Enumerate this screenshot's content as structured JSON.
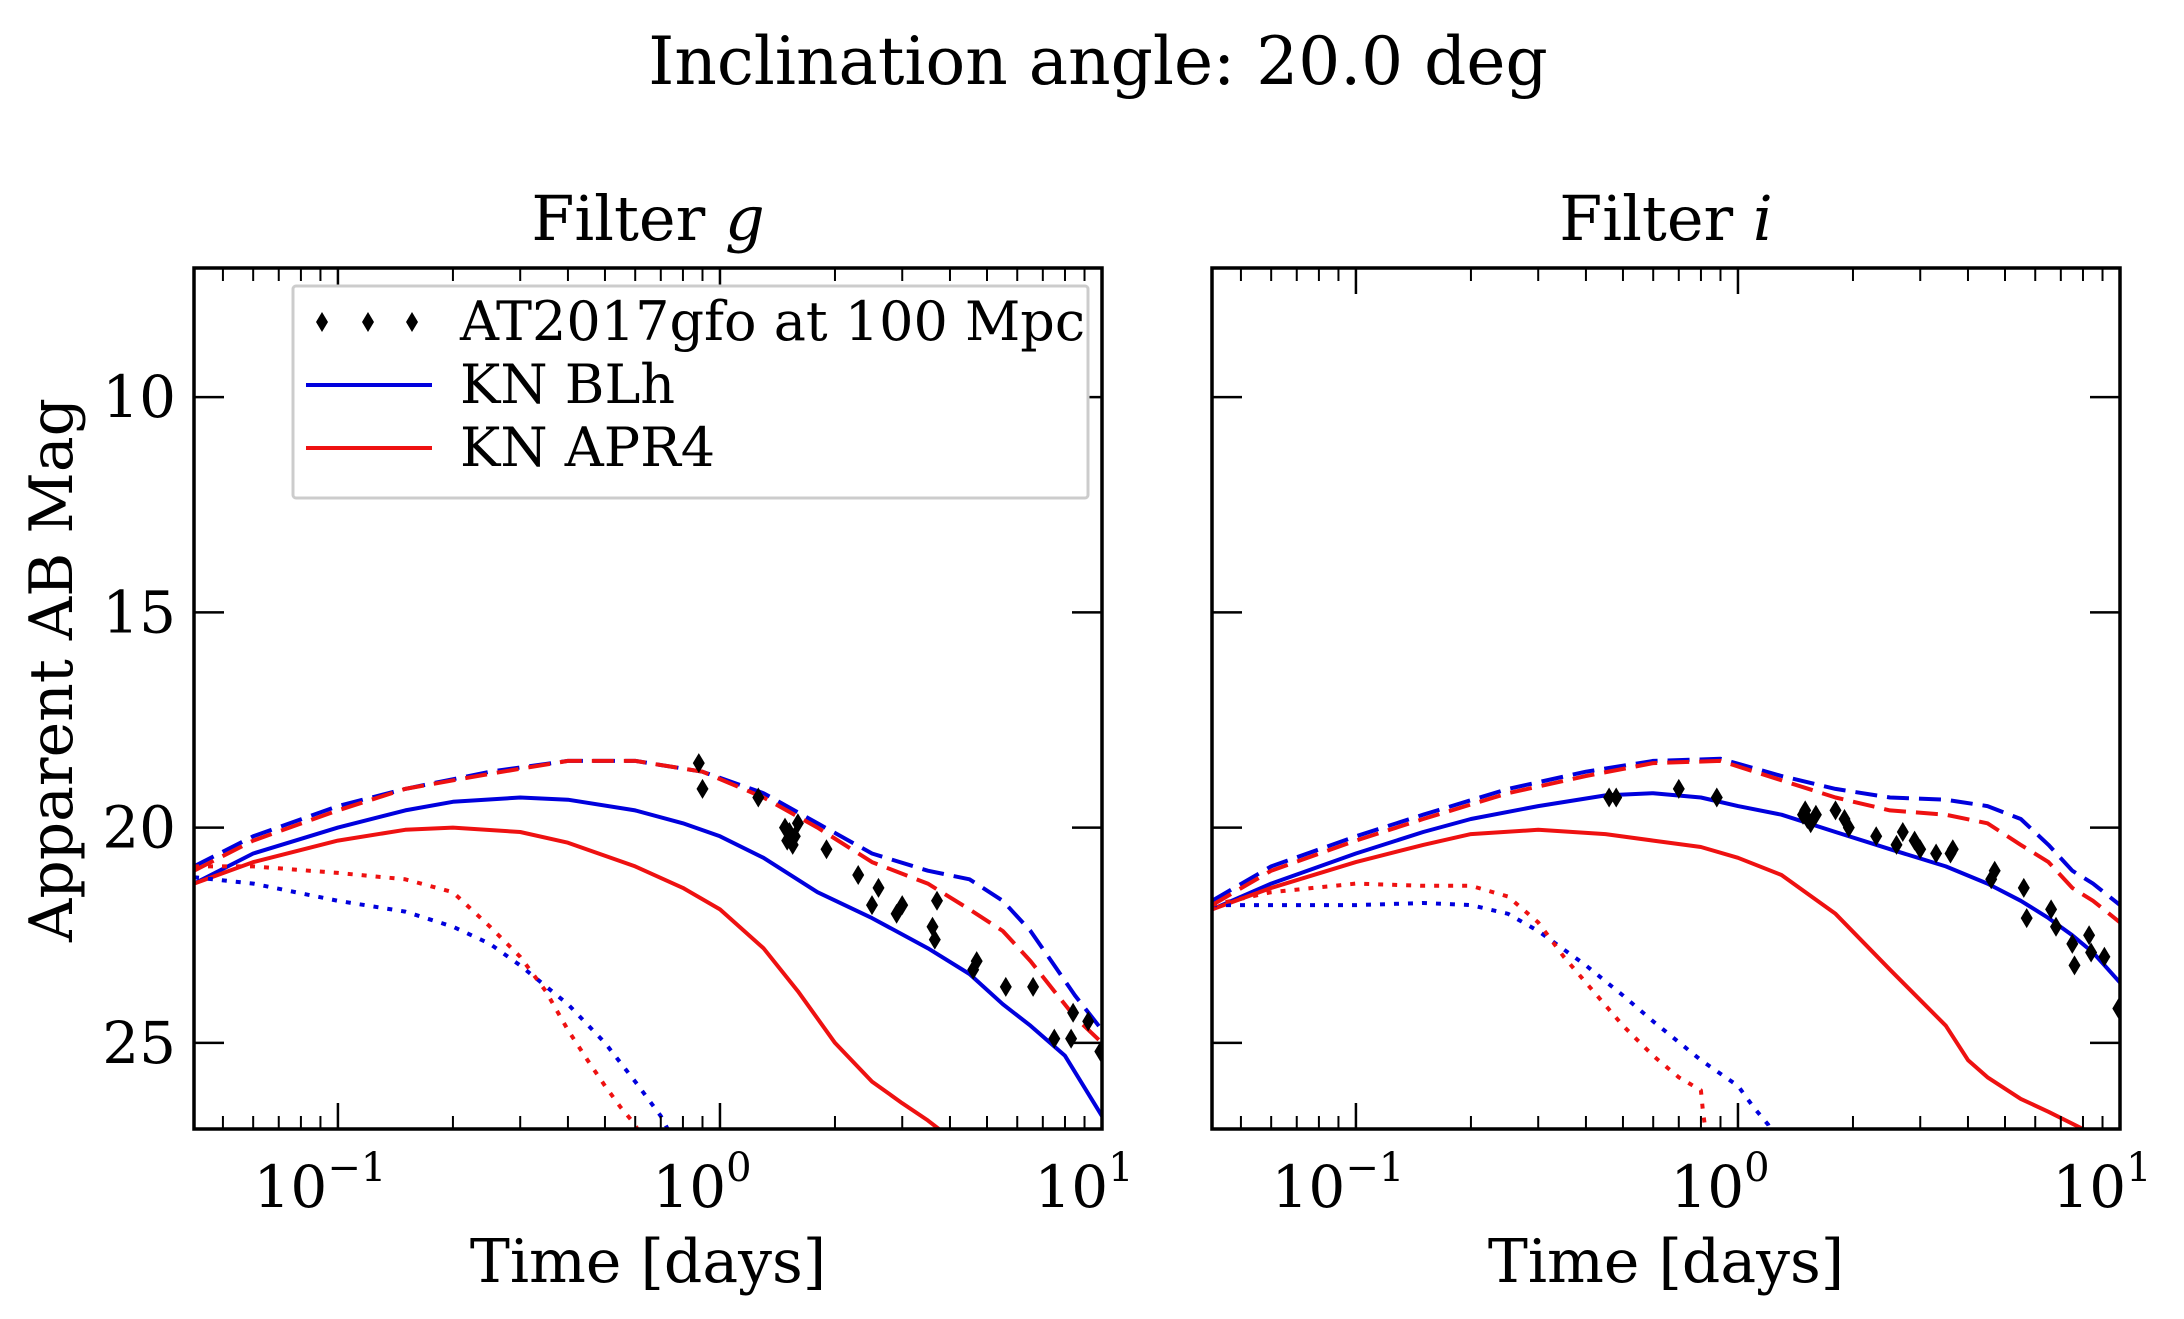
{
  "chart_data": {
    "suptitle": "Inclination angle: 20.0 deg",
    "ylabel": "Apparent AB Mag",
    "xscale": "log",
    "xlim": [
      0.042,
      10
    ],
    "ylim": [
      27,
      7
    ],
    "y_inverted": true,
    "yticks": [
      10,
      15,
      20,
      25
    ],
    "xticks": [
      {
        "value": 0.1,
        "base": "10",
        "exp": "−1"
      },
      {
        "value": 1,
        "base": "10",
        "exp": "0"
      },
      {
        "value": 10,
        "base": "10",
        "exp": "1"
      }
    ],
    "legend": {
      "location": "upper-right",
      "entries": [
        {
          "label": "AT2017gfo at 100 Mpc",
          "style": "markers",
          "color": "#000000"
        },
        {
          "label": "KN BLh",
          "style": "line",
          "color": "#0000dd"
        },
        {
          "label": "KN APR4",
          "style": "line",
          "color": "#ee1111"
        }
      ]
    },
    "panels": [
      {
        "title_prefix": "Filter ",
        "title_filter": "g",
        "xlabel": "Time [days]",
        "observations": [
          [
            0.88,
            18.5
          ],
          [
            0.9,
            19.1
          ],
          [
            1.26,
            19.3
          ],
          [
            1.48,
            20.0
          ],
          [
            1.5,
            20.3
          ],
          [
            1.52,
            20.1
          ],
          [
            1.55,
            20.4
          ],
          [
            1.57,
            20.2
          ],
          [
            1.6,
            19.9
          ],
          [
            1.9,
            20.5
          ],
          [
            2.3,
            21.1
          ],
          [
            2.5,
            21.8
          ],
          [
            2.6,
            21.4
          ],
          [
            2.9,
            22.0
          ],
          [
            3.0,
            21.8
          ],
          [
            3.6,
            22.3
          ],
          [
            3.65,
            22.6
          ],
          [
            3.7,
            21.7
          ],
          [
            4.6,
            23.3
          ],
          [
            4.7,
            23.1
          ],
          [
            5.6,
            23.7
          ],
          [
            6.6,
            23.7
          ],
          [
            7.5,
            24.9
          ],
          [
            8.3,
            24.9
          ],
          [
            8.4,
            24.3
          ],
          [
            9.2,
            24.5
          ],
          [
            9.9,
            25.2
          ]
        ],
        "series": [
          {
            "name": "BLh total",
            "model": "KN BLh",
            "component": "dashed",
            "color": "#0000dd",
            "x": [
              0.042,
              0.06,
              0.1,
              0.15,
              0.25,
              0.4,
              0.6,
              0.9,
              1.3,
              1.8,
              2.5,
              3.5,
              4.5,
              5.5,
              6.5,
              7.5,
              8.5,
              10
            ],
            "y": [
              20.9,
              20.2,
              19.5,
              19.1,
              18.7,
              18.45,
              18.45,
              18.7,
              19.2,
              19.9,
              20.6,
              21.0,
              21.2,
              21.7,
              22.4,
              23.2,
              23.9,
              24.7
            ]
          },
          {
            "name": "APR4 total",
            "model": "KN APR4",
            "component": "dashed",
            "color": "#ee1111",
            "x": [
              0.042,
              0.06,
              0.1,
              0.15,
              0.25,
              0.4,
              0.6,
              0.9,
              1.3,
              1.8,
              2.5,
              3.5,
              4.5,
              5.5,
              6.5,
              7.5,
              8.5,
              10
            ],
            "y": [
              21.0,
              20.3,
              19.6,
              19.1,
              18.75,
              18.45,
              18.45,
              18.7,
              19.3,
              20.0,
              20.8,
              21.3,
              21.9,
              22.4,
              23.1,
              23.8,
              24.4,
              25.0
            ]
          },
          {
            "name": "BLh solid",
            "model": "KN BLh",
            "component": "solid",
            "color": "#0000dd",
            "x": [
              0.042,
              0.06,
              0.1,
              0.15,
              0.2,
              0.3,
              0.4,
              0.6,
              0.8,
              1.0,
              1.3,
              1.8,
              2.5,
              3.5,
              4.5,
              5.5,
              6.5,
              8.0,
              10
            ],
            "y": [
              21.3,
              20.6,
              20.0,
              19.6,
              19.4,
              19.3,
              19.35,
              19.6,
              19.9,
              20.2,
              20.7,
              21.5,
              22.1,
              22.8,
              23.4,
              24.1,
              24.6,
              25.3,
              26.7
            ]
          },
          {
            "name": "APR4 solid",
            "model": "KN APR4",
            "component": "solid",
            "color": "#ee1111",
            "x": [
              0.042,
              0.06,
              0.1,
              0.15,
              0.2,
              0.3,
              0.4,
              0.6,
              0.8,
              1.0,
              1.3,
              1.6,
              2.0,
              2.5,
              3.0,
              3.5,
              4.0,
              4.4
            ],
            "y": [
              21.3,
              20.8,
              20.3,
              20.05,
              20.0,
              20.1,
              20.35,
              20.9,
              21.4,
              21.9,
              22.8,
              23.8,
              25.0,
              25.9,
              26.4,
              26.8,
              27.2,
              27.6
            ]
          },
          {
            "name": "BLh dotted",
            "model": "KN BLh",
            "component": "dotted",
            "color": "#0000dd",
            "x": [
              0.042,
              0.06,
              0.1,
              0.15,
              0.2,
              0.25,
              0.3,
              0.4,
              0.5,
              0.6,
              0.7,
              0.75,
              0.8
            ],
            "y": [
              21.15,
              21.3,
              21.7,
              21.95,
              22.3,
              22.7,
              23.2,
              24.1,
              25.0,
              25.9,
              26.7,
              27.2,
              27.6
            ]
          },
          {
            "name": "APR4 dotted",
            "model": "KN APR4",
            "component": "dotted",
            "color": "#ee1111",
            "x": [
              0.042,
              0.06,
              0.1,
              0.15,
              0.2,
              0.25,
              0.3,
              0.35,
              0.4,
              0.45,
              0.5,
              0.55,
              0.6,
              0.63
            ],
            "y": [
              20.9,
              20.9,
              21.05,
              21.2,
              21.5,
              22.3,
              23.0,
              23.8,
              24.7,
              25.4,
              26.0,
              26.5,
              26.9,
              27.3
            ]
          }
        ]
      },
      {
        "title_prefix": "Filter ",
        "title_filter": "i",
        "xlabel": "Time [days]",
        "observations": [
          [
            0.46,
            19.3
          ],
          [
            0.48,
            19.3
          ],
          [
            0.7,
            19.1
          ],
          [
            0.88,
            19.3
          ],
          [
            1.48,
            19.7
          ],
          [
            1.5,
            19.6
          ],
          [
            1.52,
            19.8
          ],
          [
            1.55,
            19.9
          ],
          [
            1.6,
            19.7
          ],
          [
            1.8,
            19.6
          ],
          [
            1.9,
            19.8
          ],
          [
            1.95,
            20.0
          ],
          [
            2.3,
            20.2
          ],
          [
            2.6,
            20.4
          ],
          [
            2.7,
            20.1
          ],
          [
            2.9,
            20.3
          ],
          [
            3.0,
            20.5
          ],
          [
            3.3,
            20.6
          ],
          [
            3.6,
            20.6
          ],
          [
            3.65,
            20.5
          ],
          [
            4.6,
            21.2
          ],
          [
            4.7,
            21.0
          ],
          [
            5.6,
            21.4
          ],
          [
            5.7,
            22.1
          ],
          [
            6.6,
            21.9
          ],
          [
            6.8,
            22.3
          ],
          [
            7.5,
            22.7
          ],
          [
            7.6,
            23.2
          ],
          [
            8.3,
            22.5
          ],
          [
            8.4,
            22.9
          ],
          [
            9.1,
            23.0
          ],
          [
            9.9,
            24.2
          ]
        ],
        "series": [
          {
            "name": "BLh total",
            "model": "KN BLh",
            "component": "dashed",
            "color": "#0000dd",
            "x": [
              0.042,
              0.06,
              0.1,
              0.15,
              0.25,
              0.4,
              0.6,
              0.9,
              1.3,
              1.8,
              2.5,
              3.5,
              4.5,
              5.5,
              6.5,
              7.5,
              8.5,
              10
            ],
            "y": [
              21.7,
              20.9,
              20.2,
              19.7,
              19.1,
              18.7,
              18.45,
              18.4,
              18.8,
              19.1,
              19.3,
              19.35,
              19.5,
              19.8,
              20.4,
              21.0,
              21.3,
              21.8
            ]
          },
          {
            "name": "APR4 total",
            "model": "KN APR4",
            "component": "dashed",
            "color": "#ee1111",
            "x": [
              0.042,
              0.06,
              0.1,
              0.15,
              0.25,
              0.4,
              0.6,
              0.9,
              1.3,
              1.8,
              2.5,
              3.5,
              4.5,
              5.5,
              6.5,
              7.5,
              8.5,
              10
            ],
            "y": [
              21.8,
              21.0,
              20.3,
              19.8,
              19.2,
              18.8,
              18.5,
              18.45,
              18.9,
              19.3,
              19.6,
              19.7,
              19.9,
              20.4,
              20.8,
              21.4,
              21.7,
              22.2
            ]
          },
          {
            "name": "BLh solid",
            "model": "KN BLh",
            "component": "solid",
            "color": "#0000dd",
            "x": [
              0.042,
              0.06,
              0.1,
              0.15,
              0.2,
              0.3,
              0.45,
              0.6,
              0.8,
              1.0,
              1.3,
              1.8,
              2.5,
              3.5,
              4.5,
              5.5,
              6.5,
              7.5,
              8.5,
              10
            ],
            "y": [
              21.9,
              21.3,
              20.6,
              20.1,
              19.8,
              19.5,
              19.25,
              19.2,
              19.3,
              19.5,
              19.7,
              20.1,
              20.5,
              20.9,
              21.3,
              21.7,
              22.1,
              22.5,
              22.9,
              23.6
            ]
          },
          {
            "name": "APR4 solid",
            "model": "KN APR4",
            "component": "solid",
            "color": "#ee1111",
            "x": [
              0.042,
              0.06,
              0.1,
              0.15,
              0.2,
              0.3,
              0.45,
              0.6,
              0.8,
              1.0,
              1.3,
              1.8,
              2.5,
              3.5,
              4.0,
              4.5,
              5.5,
              6.5,
              8.0,
              10
            ],
            "y": [
              21.9,
              21.4,
              20.8,
              20.4,
              20.15,
              20.05,
              20.15,
              20.3,
              20.45,
              20.7,
              21.1,
              22.0,
              23.3,
              24.6,
              25.4,
              25.8,
              26.3,
              26.6,
              27.0,
              27.4
            ]
          },
          {
            "name": "BLh dotted",
            "model": "KN BLh",
            "component": "dotted",
            "color": "#0000dd",
            "x": [
              0.042,
              0.06,
              0.1,
              0.15,
              0.2,
              0.25,
              0.3,
              0.4,
              0.5,
              0.6,
              0.8,
              1.0,
              1.1,
              1.2,
              1.25
            ],
            "y": [
              21.8,
              21.8,
              21.8,
              21.75,
              21.8,
              22.0,
              22.4,
              23.2,
              23.9,
              24.5,
              25.4,
              26.0,
              26.5,
              26.9,
              27.3
            ]
          },
          {
            "name": "APR4 dotted",
            "model": "KN APR4",
            "component": "dotted",
            "color": "#ee1111",
            "x": [
              0.042,
              0.06,
              0.1,
              0.15,
              0.2,
              0.25,
              0.3,
              0.35,
              0.4,
              0.5,
              0.6,
              0.7,
              0.8,
              0.81,
              0.83
            ],
            "y": [
              21.8,
              21.5,
              21.3,
              21.35,
              21.35,
              21.6,
              22.2,
              23.0,
              23.6,
              24.6,
              25.3,
              25.8,
              26.1,
              26.6,
              27.3
            ]
          }
        ]
      }
    ]
  }
}
